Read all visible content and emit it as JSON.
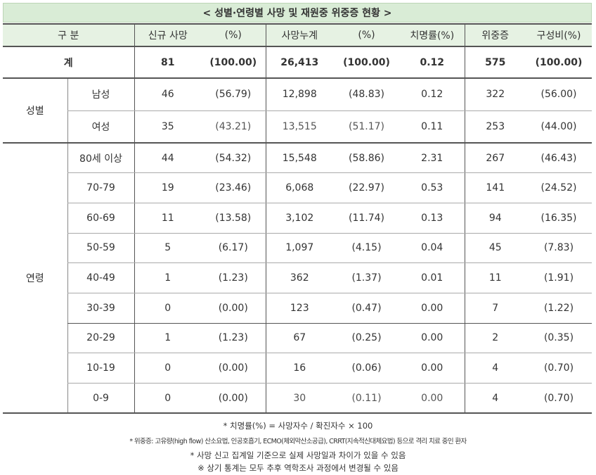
{
  "title": "< 성별·연령별 사망 및 재원중 위중증 현황 >",
  "headers": {
    "category": "구 분",
    "new_deaths": "신규 사망",
    "pct1": "(%)",
    "cum_deaths": "사망누계",
    "pct2": "(%)",
    "fatality": "치명률(%)",
    "severe": "위중증",
    "ratio": "구성비(%)"
  },
  "total": {
    "label": "계",
    "values": [
      "81",
      "(100.00)",
      "26,413",
      "(100.00)",
      "0.12",
      "575",
      "(100.00)"
    ]
  },
  "gender": {
    "group_label": "성별",
    "rows": [
      {
        "label": "남성",
        "values": [
          "46",
          "(56.79)",
          "12,898",
          "(48.83)",
          "0.12",
          "322",
          "(56.00)"
        ]
      },
      {
        "label": "여성",
        "values": [
          "35",
          "(43.21)",
          "13,515",
          "(51.17)",
          "0.11",
          "253",
          "(44.00)"
        ]
      }
    ]
  },
  "age": {
    "group_label": "연령",
    "rows": [
      {
        "label": "80세 이상",
        "values": [
          "44",
          "(54.32)",
          "15,548",
          "(58.86)",
          "2.31",
          "267",
          "(46.43)"
        ]
      },
      {
        "label": "70-79",
        "values": [
          "19",
          "(23.46)",
          "6,068",
          "(22.97)",
          "0.53",
          "141",
          "(24.52)"
        ]
      },
      {
        "label": "60-69",
        "values": [
          "11",
          "(13.58)",
          "3,102",
          "(11.74)",
          "0.13",
          "94",
          "(16.35)"
        ]
      },
      {
        "label": "50-59",
        "values": [
          "5",
          "(6.17)",
          "1,097",
          "(4.15)",
          "0.04",
          "45",
          "(7.83)"
        ]
      },
      {
        "label": "40-49",
        "values": [
          "1",
          "(1.23)",
          "362",
          "(1.37)",
          "0.01",
          "11",
          "(1.91)"
        ]
      },
      {
        "label": "30-39",
        "values": [
          "0",
          "(0.00)",
          "123",
          "(0.47)",
          "0.00",
          "7",
          "(1.22)"
        ]
      },
      {
        "label": "20-29",
        "values": [
          "1",
          "(1.23)",
          "67",
          "(0.25)",
          "0.00",
          "2",
          "(0.35)"
        ]
      },
      {
        "label": "10-19",
        "values": [
          "0",
          "(0.00)",
          "16",
          "(0.06)",
          "0.00",
          "4",
          "(0.70)"
        ]
      },
      {
        "label": "0-9",
        "values": [
          "0",
          "(0.00)",
          "30",
          "(0.11)",
          "0.00",
          "4",
          "(0.70)"
        ]
      }
    ]
  },
  "notes": [
    "* 치명률(%) = 사망자수 / 확진자수 × 100",
    "* 위중증: 고유량(high flow) 산소요법, 인공호흡기, ECMO(체외막산소공급), CRRT(지속적신대체요법) 등으로 격리 치료 중인 환자",
    "* 사망 신고 집계일 기준으로 실제 사망일과 차이가 있을 수 있음",
    "※ 상기 통계는 모두 추후 역학조사 과정에서 변경될 수 있음"
  ]
}
